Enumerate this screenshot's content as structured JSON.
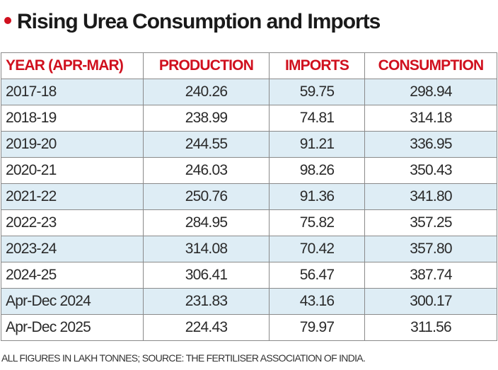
{
  "title": "Rising Urea Consumption and Imports",
  "chart_data": {
    "type": "table",
    "title": "Rising Urea Consumption and Imports",
    "columns": [
      "YEAR (APR-MAR)",
      "PRODUCTION",
      "IMPORTS",
      "CONSUMPTION"
    ],
    "rows": [
      [
        "2017-18",
        "240.26",
        "59.75",
        "298.94"
      ],
      [
        "2018-19",
        "238.99",
        "74.81",
        "314.18"
      ],
      [
        "2019-20",
        "244.55",
        "91.21",
        "336.95"
      ],
      [
        "2020-21",
        "246.03",
        "98.26",
        "350.43"
      ],
      [
        "2021-22",
        "250.76",
        "91.36",
        "341.80"
      ],
      [
        "2022-23",
        "284.95",
        "75.82",
        "357.25"
      ],
      [
        "2023-24",
        "314.08",
        "70.42",
        "357.80"
      ],
      [
        "2024-25",
        "306.41",
        "56.47",
        "387.74"
      ],
      [
        "Apr-Dec 2024",
        "231.83",
        "43.16",
        "300.17"
      ],
      [
        "Apr-Dec 2025",
        "224.43",
        "79.97",
        "311.56"
      ]
    ]
  },
  "footnote": "ALL FIGURES IN LAKH TONNES; SOURCE: THE FERTILISER ASSOCIATION OF INDIA.",
  "colors": {
    "header_text": "#d0101e",
    "row_alt": "#deedf5",
    "bullet": "#d0101e"
  }
}
